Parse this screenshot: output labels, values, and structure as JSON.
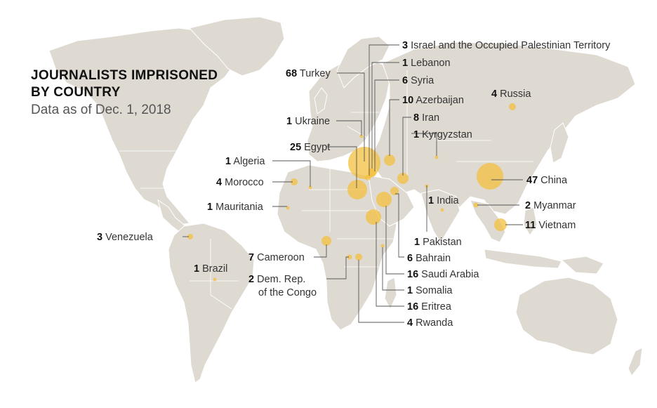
{
  "title_line1": "JOURNALISTS IMPRISONED",
  "title_line2": "BY COUNTRY",
  "subtitle": "Data as of Dec. 1, 2018",
  "colors": {
    "land": "#dedad2",
    "bubble": "#f3bf3e",
    "leader": "#555555"
  },
  "countries": [
    {
      "name": "Turkey",
      "count": "68"
    },
    {
      "name": "China",
      "count": "47"
    },
    {
      "name": "Egypt",
      "count": "25"
    },
    {
      "name": "Saudi Arabia",
      "count": "16"
    },
    {
      "name": "Eritrea",
      "count": "16"
    },
    {
      "name": "Vietnam",
      "count": "11"
    },
    {
      "name": "Azerbaijan",
      "count": "10"
    },
    {
      "name": "Iran",
      "count": "8"
    },
    {
      "name": "Cameroon",
      "count": "7"
    },
    {
      "name": "Syria",
      "count": "6"
    },
    {
      "name": "Bahrain",
      "count": "6"
    },
    {
      "name": "Russia",
      "count": "4"
    },
    {
      "name": "Morocco",
      "count": "4"
    },
    {
      "name": "Rwanda",
      "count": "4"
    },
    {
      "name": "Israel and the Occupied Palestinian Territory",
      "count": "3"
    },
    {
      "name": "Venezuela",
      "count": "3"
    },
    {
      "name": "Myanmar",
      "count": "2"
    },
    {
      "name": "Dem. Rep. of the Congo",
      "count": "2",
      "label_line1": "Dem. Rep.",
      "label_line2": "of the Congo"
    },
    {
      "name": "Lebanon",
      "count": "1"
    },
    {
      "name": "Kyrgyzstan",
      "count": "1"
    },
    {
      "name": "Ukraine",
      "count": "1"
    },
    {
      "name": "Algeria",
      "count": "1"
    },
    {
      "name": "Mauritania",
      "count": "1"
    },
    {
      "name": "India",
      "count": "1"
    },
    {
      "name": "Pakistan",
      "count": "1"
    },
    {
      "name": "Brazil",
      "count": "1"
    },
    {
      "name": "Somalia",
      "count": "1"
    }
  ]
}
